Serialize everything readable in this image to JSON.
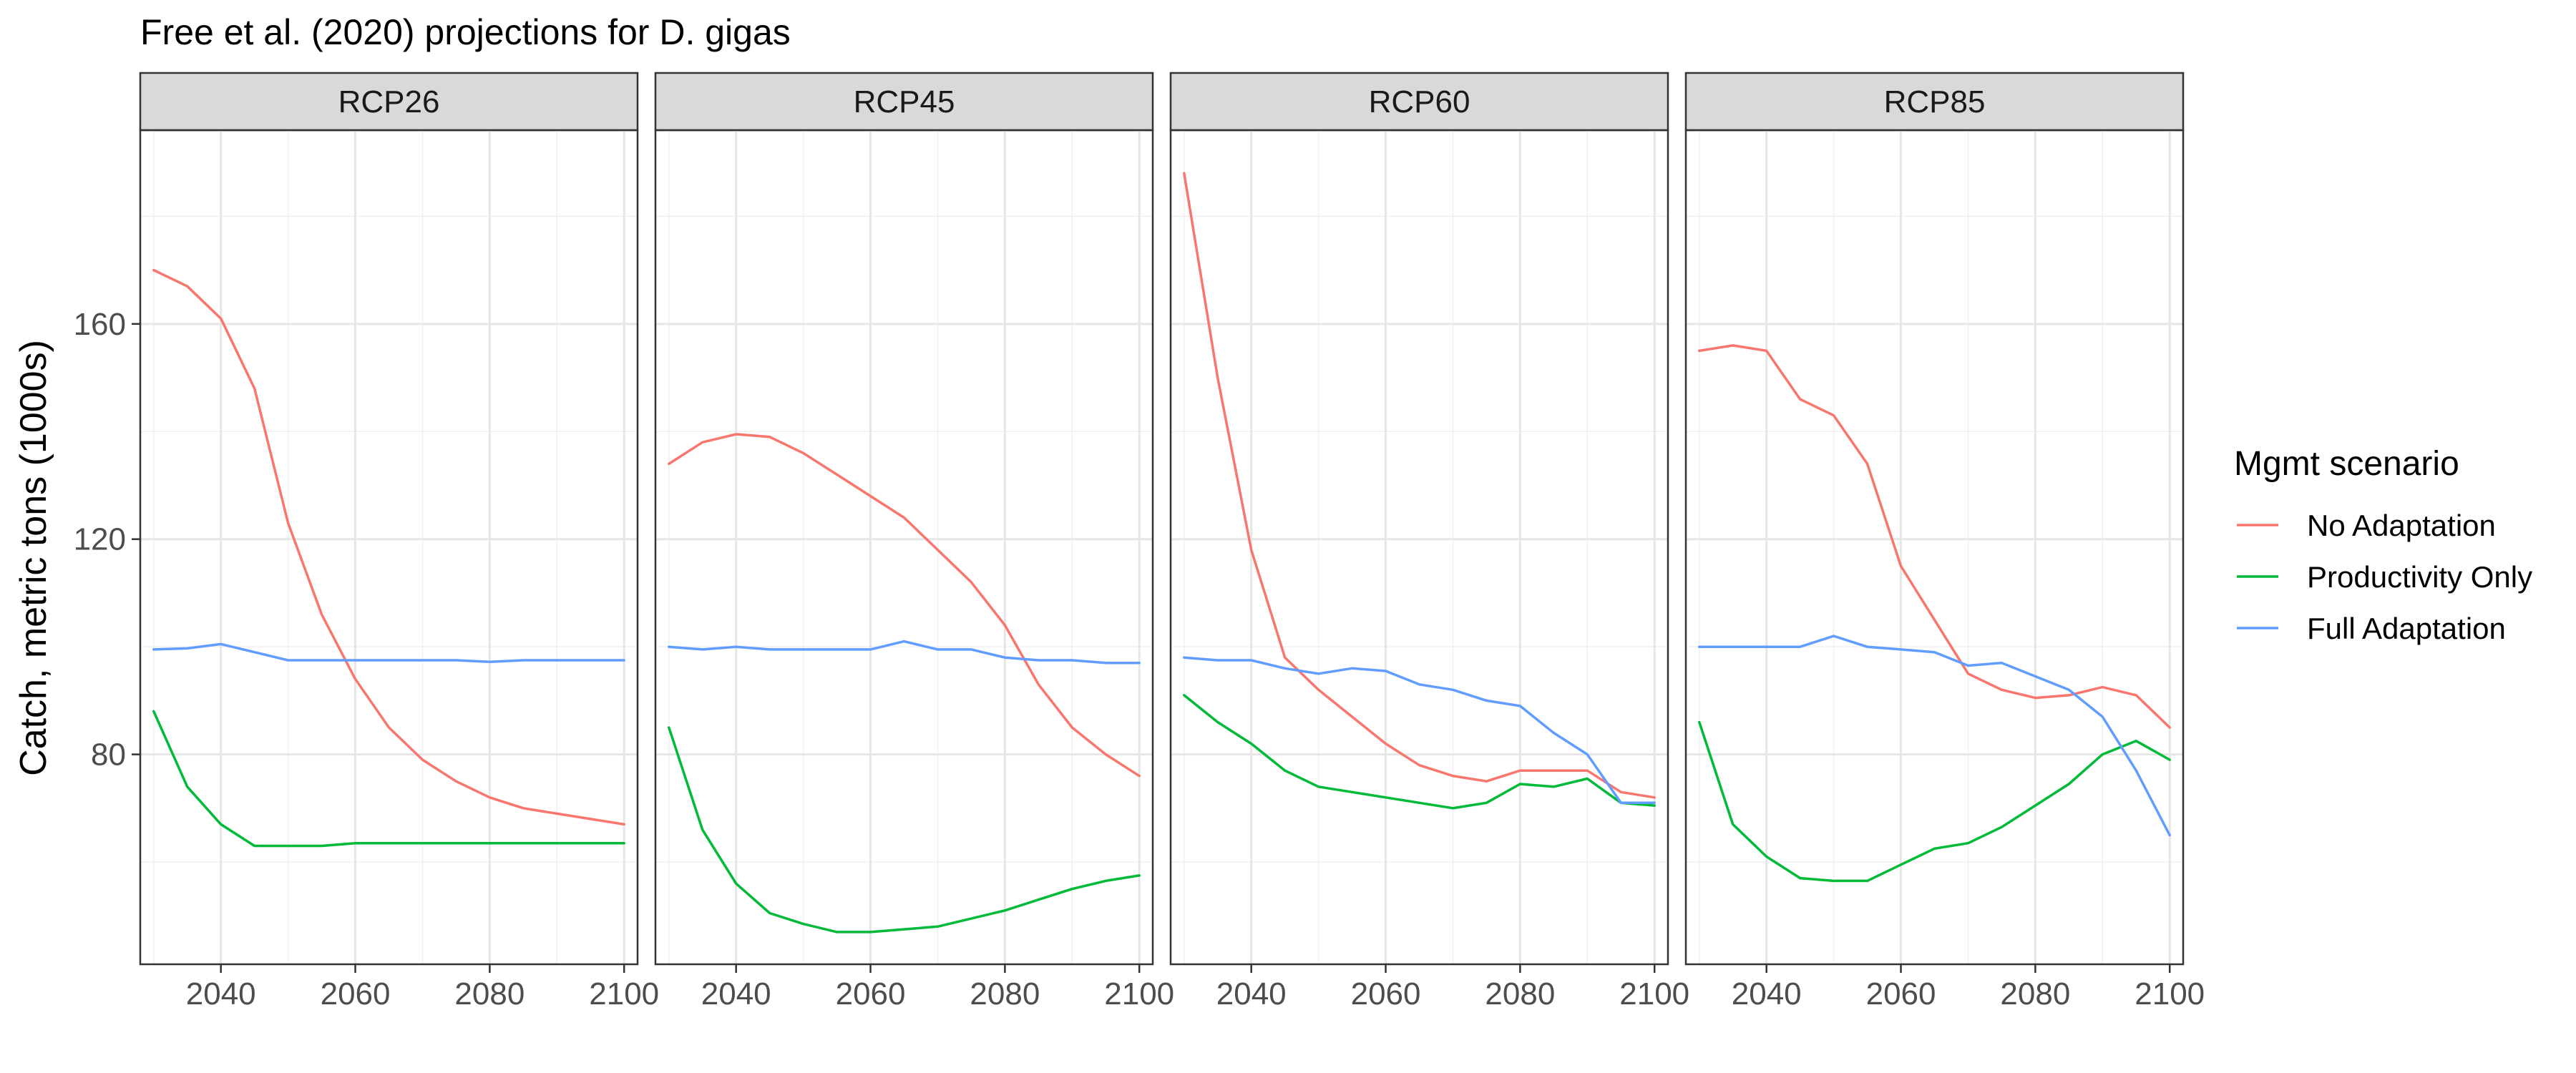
{
  "chart_data": {
    "type": "line",
    "title": "Free et al. (2020) projections for D. gigas",
    "xlabel": "",
    "ylabel": "Catch, metric tons (1000s)",
    "xlim": [
      2028,
      2102
    ],
    "ylim": [
      41,
      196
    ],
    "x_ticks": [
      2040,
      2060,
      2080,
      2100
    ],
    "y_ticks": [
      80,
      120,
      160
    ],
    "grid": true,
    "facets": [
      "RCP26",
      "RCP45",
      "RCP60",
      "RCP85"
    ],
    "legend": {
      "title": "Mgmt scenario",
      "position": "right",
      "entries": [
        {
          "name": "No Adaptation",
          "color": "#F8766D"
        },
        {
          "name": "Productivity Only",
          "color": "#00BA38"
        },
        {
          "name": "Full Adaptation",
          "color": "#619CFF"
        }
      ]
    },
    "x": [
      2030,
      2035,
      2040,
      2045,
      2050,
      2055,
      2060,
      2065,
      2070,
      2075,
      2080,
      2085,
      2090,
      2095,
      2100
    ],
    "panels": [
      {
        "name": "RCP26",
        "series": [
          {
            "name": "No Adaptation",
            "values": [
              170,
              167,
              161,
              148,
              123,
              106,
              94,
              85,
              79,
              75,
              72,
              70,
              69,
              68,
              67
            ]
          },
          {
            "name": "Productivity Only",
            "values": [
              88,
              74,
              67,
              63,
              63,
              63,
              63.5,
              63.5,
              63.5,
              63.5,
              63.5,
              63.5,
              63.5,
              63.5,
              63.5
            ]
          },
          {
            "name": "Full Adaptation",
            "values": [
              99.5,
              99.7,
              100.5,
              99,
              97.5,
              97.5,
              97.5,
              97.5,
              97.5,
              97.5,
              97.2,
              97.5,
              97.5,
              97.5,
              97.5
            ]
          }
        ]
      },
      {
        "name": "RCP45",
        "series": [
          {
            "name": "No Adaptation",
            "values": [
              134,
              138,
              139.5,
              139,
              136,
              132,
              128,
              124,
              118,
              112,
              104,
              93,
              85,
              80,
              76
            ]
          },
          {
            "name": "Productivity Only",
            "values": [
              85,
              66,
              56,
              50.5,
              48.5,
              47,
              47,
              47.5,
              48,
              49.5,
              51,
              53,
              55,
              56.5,
              57.5
            ]
          },
          {
            "name": "Full Adaptation",
            "values": [
              100,
              99.5,
              100,
              99.5,
              99.5,
              99.5,
              99.5,
              101,
              99.5,
              99.5,
              98,
              97.5,
              97.5,
              97,
              97
            ]
          }
        ]
      },
      {
        "name": "RCP60",
        "series": [
          {
            "name": "No Adaptation",
            "values": [
              188,
              150,
              118,
              98,
              92,
              87,
              82,
              78,
              76,
              75,
              77,
              77,
              77,
              73,
              72
            ]
          },
          {
            "name": "Productivity Only",
            "values": [
              91,
              86,
              82,
              77,
              74,
              73,
              72,
              71,
              70,
              71,
              74.5,
              74,
              75.5,
              71,
              70.5
            ]
          },
          {
            "name": "Full Adaptation",
            "values": [
              98,
              97.5,
              97.5,
              96,
              95,
              96,
              95.5,
              93,
              92,
              90,
              89,
              84,
              80,
              71,
              71
            ]
          }
        ]
      },
      {
        "name": "RCP85",
        "series": [
          {
            "name": "No Adaptation",
            "values": [
              155,
              156,
              155,
              146,
              143,
              134,
              115,
              105,
              95,
              92,
              90.5,
              91,
              92.5,
              91,
              85
            ]
          },
          {
            "name": "Productivity Only",
            "values": [
              86,
              67,
              61,
              57,
              56.5,
              56.5,
              59.5,
              62.5,
              63.5,
              66.5,
              70.5,
              74.5,
              80,
              82.5,
              79
            ]
          },
          {
            "name": "Full Adaptation",
            "values": [
              100,
              100,
              100,
              100,
              102,
              100,
              99.5,
              99,
              96.5,
              97,
              94.5,
              92,
              87,
              77,
              65
            ]
          }
        ]
      }
    ]
  }
}
